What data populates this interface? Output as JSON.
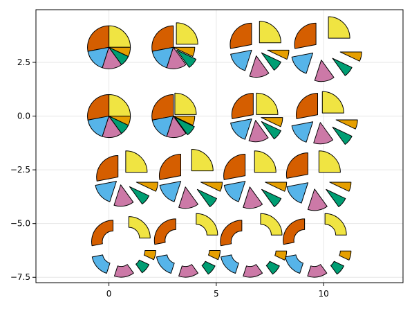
{
  "chart_data": {
    "type": "pie",
    "title": "",
    "xlabel": "",
    "ylabel": "",
    "xlim": [
      -3.4,
      13.7
    ],
    "ylim": [
      -7.75,
      4.95
    ],
    "grid": true,
    "x_ticks": [
      0,
      5,
      10
    ],
    "x_tick_labels": [
      "0",
      "5",
      "10"
    ],
    "y_ticks": [
      2.5,
      0.0,
      -2.5,
      -5.0,
      -7.5
    ],
    "y_tick_labels": [
      "2.5",
      "0.0",
      "−2.5",
      "−5.0",
      "−7.5"
    ],
    "slice_values": [
      0.25,
      0.28,
      0.17,
      0.15,
      0.08,
      0.07
    ],
    "slice_colors": [
      "#f0e442",
      "#d55e00",
      "#56b4e9",
      "#cc79a7",
      "#009e73",
      "#e69f00"
    ],
    "radius": 1.0,
    "pies": [
      {
        "x": 0,
        "y": 3.2,
        "inner_radius": 0,
        "offsets": [
          0,
          0,
          0,
          0,
          0,
          0
        ]
      },
      {
        "x": 3,
        "y": 3.2,
        "inner_radius": 0,
        "offsets": [
          0.2,
          0,
          0,
          0,
          0.2,
          0
        ]
      },
      {
        "x": 6.8,
        "y": 3.2,
        "inner_radius": 0,
        "offsets": [
          0.3,
          0.2,
          0.2,
          0.4,
          0.4,
          0.6
        ]
      },
      {
        "x": 9.8,
        "y": 3.2,
        "inner_radius": 0,
        "offsets": [
          0.6,
          0.2,
          0.4,
          0.6,
          0.8,
          1.0
        ]
      },
      {
        "x": 0,
        "y": 0,
        "inner_radius": 0,
        "offsets": [
          0,
          0,
          0,
          0,
          0,
          0
        ]
      },
      {
        "x": 3,
        "y": 0,
        "inner_radius": 0,
        "offsets": [
          0.1,
          0,
          0,
          0,
          0.1,
          0
        ]
      },
      {
        "x": 6.8,
        "y": 0,
        "inner_radius": 0,
        "offsets": [
          0.1,
          0.1,
          0.2,
          0.2,
          0.4,
          0.3
        ]
      },
      {
        "x": 9.8,
        "y": 0,
        "inner_radius": 0,
        "offsets": [
          0.2,
          0.1,
          0.4,
          0.3,
          0.8,
          0.8
        ]
      },
      {
        "x": 0.5,
        "y": -2.9,
        "inner_radius": 0,
        "offsets": [
          0.4,
          0.1,
          0.2,
          0.3,
          0.6,
          0.8
        ]
      },
      {
        "x": 3.5,
        "y": -2.9,
        "inner_radius": 0,
        "offsets": [
          0.5,
          0.2,
          0.2,
          0.4,
          0.8,
          0.8
        ]
      },
      {
        "x": 6.5,
        "y": -2.9,
        "inner_radius": 0,
        "offsets": [
          0.4,
          0.2,
          0.2,
          0.4,
          0.8,
          0.8
        ]
      },
      {
        "x": 9.5,
        "y": -2.9,
        "inner_radius": 0,
        "offsets": [
          0.4,
          0.3,
          0.3,
          0.5,
          0.8,
          0.8
        ]
      },
      {
        "x": 0.5,
        "y": -6.1,
        "inner_radius": 0.5,
        "offsets": [
          0.6,
          0.4,
          0.4,
          0.4,
          0.6,
          0.7
        ]
      },
      {
        "x": 3.5,
        "y": -6.1,
        "inner_radius": 0.5,
        "offsets": [
          0.8,
          0.5,
          0.4,
          0.4,
          0.7,
          0.7
        ]
      },
      {
        "x": 6.5,
        "y": -6.1,
        "inner_radius": 0.5,
        "offsets": [
          0.8,
          0.4,
          0.4,
          0.4,
          0.7,
          0.8
        ]
      },
      {
        "x": 9.5,
        "y": -6.1,
        "inner_radius": 0.5,
        "offsets": [
          0.8,
          0.5,
          0.4,
          0.4,
          0.7,
          0.8
        ]
      }
    ]
  }
}
